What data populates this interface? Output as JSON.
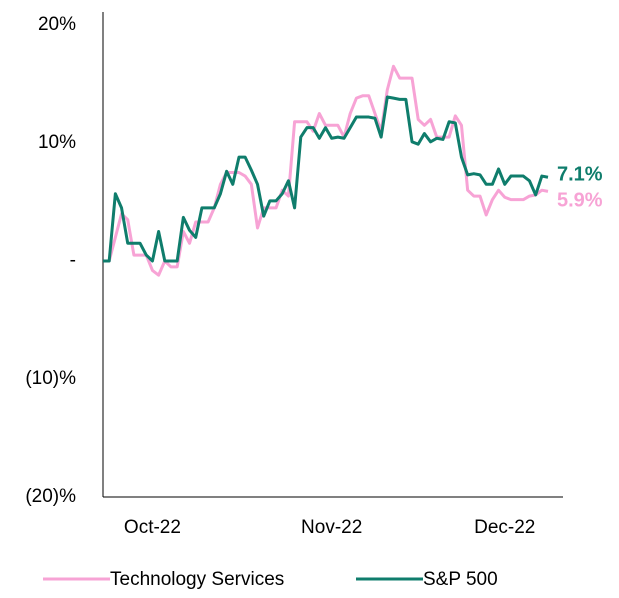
{
  "chart_data": {
    "type": "line",
    "categories": [
      null,
      null,
      null,
      null,
      null,
      null,
      null,
      null,
      "Oct-22",
      null,
      null,
      null,
      null,
      null,
      null,
      null,
      null,
      null,
      null,
      null,
      null,
      null,
      null,
      null,
      null,
      null,
      null,
      null,
      null,
      null,
      null,
      null,
      null,
      null,
      null,
      null,
      null,
      "Nov-22",
      null,
      null,
      null,
      null,
      null,
      null,
      null,
      null,
      null,
      null,
      null,
      null,
      null,
      null,
      null,
      null,
      null,
      null,
      null,
      null,
      null,
      null,
      null,
      null,
      null,
      null,
      null,
      "Dec-22",
      null,
      null,
      null,
      null,
      null,
      null,
      null
    ],
    "series": [
      {
        "name": "Technology Services",
        "color": "#f7a3d5",
        "end_label": "5.9%",
        "values": [
          0,
          0,
          2,
          4,
          3.5,
          0.5,
          0.5,
          0.5,
          -0.8,
          -1.2,
          0,
          -0.5,
          -0.5,
          2.5,
          1.5,
          3.3,
          3.3,
          3.3,
          4.5,
          6.5,
          7.5,
          7.5,
          7.5,
          7.2,
          6.5,
          2.8,
          4.5,
          4.5,
          4.5,
          6,
          5.5,
          11.8,
          11.8,
          11.8,
          11,
          12.5,
          11.5,
          11.5,
          11.5,
          10.5,
          12.5,
          13.8,
          14,
          14,
          12.5,
          11,
          14.5,
          16.5,
          15.5,
          15.5,
          15.5,
          12,
          11.5,
          12,
          10.5,
          10.5,
          10.5,
          12.3,
          11.5,
          6,
          5.5,
          5.5,
          3.9,
          5.2,
          6,
          5.4,
          5.2,
          5.2,
          5.2,
          5.5,
          5.6,
          6,
          5.9
        ]
      },
      {
        "name": "S&P 500",
        "color": "#0f7d6c",
        "end_label": "7.1%",
        "values": [
          0,
          0,
          5.7,
          4.5,
          1.5,
          1.5,
          1.5,
          0.5,
          0,
          2.5,
          0,
          0,
          0,
          3.7,
          2.6,
          2,
          4.5,
          4.5,
          4.5,
          5.7,
          7.6,
          6.5,
          8.8,
          8.8,
          7.7,
          6.5,
          3.8,
          5.1,
          5.1,
          5.7,
          6.8,
          4.5,
          10.5,
          11.3,
          11.3,
          10.4,
          11.3,
          10.4,
          10.5,
          10.4,
          11.3,
          12.2,
          12.2,
          12.2,
          12.1,
          10.5,
          13.9,
          13.8,
          13.7,
          13.7,
          10.1,
          9.9,
          10.8,
          10.1,
          10.4,
          10.3,
          11.8,
          11.7,
          8.8,
          7.3,
          7.4,
          7.3,
          6.5,
          6.5,
          7.8,
          6.5,
          7.2,
          7.2,
          7.2,
          6.8,
          5.6,
          7.2,
          7.1
        ]
      }
    ],
    "ylim": [
      -20,
      20
    ],
    "yticks": [
      {
        "value": -20,
        "label": "(20)%"
      },
      {
        "value": -10,
        "label": "(10)%"
      },
      {
        "value": 0,
        "label": "-"
      },
      {
        "value": 10,
        "label": "10%"
      },
      {
        "value": 20,
        "label": "20%"
      }
    ],
    "legend": "bottom"
  }
}
